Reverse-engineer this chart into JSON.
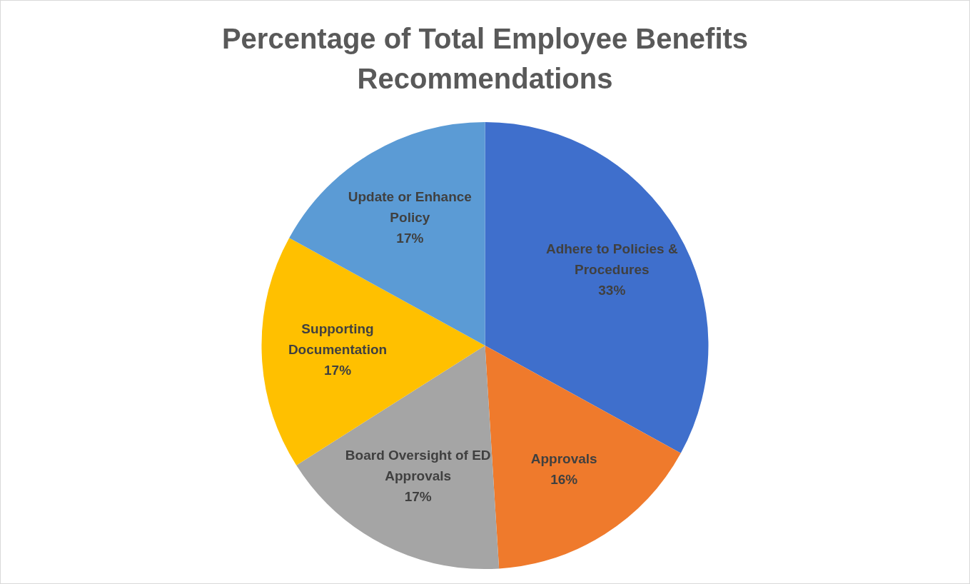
{
  "chart_data": {
    "type": "pie",
    "title": "Percentage of Total Employee Benefits Recommendations",
    "categories": [
      "Adhere to Policies & Procedures",
      "Approvals",
      "Board Oversight of ED Approvals",
      "Supporting Documentation",
      "Update or Enhance Policy"
    ],
    "values": [
      33,
      16,
      17,
      17,
      17
    ],
    "value_labels": [
      "33%",
      "16%",
      "17%",
      "17%",
      "17%"
    ],
    "colors": [
      "#3f6fcc",
      "#ef7a2c",
      "#a5a5a5",
      "#ffc000",
      "#5b9bd5"
    ],
    "legend": false
  }
}
